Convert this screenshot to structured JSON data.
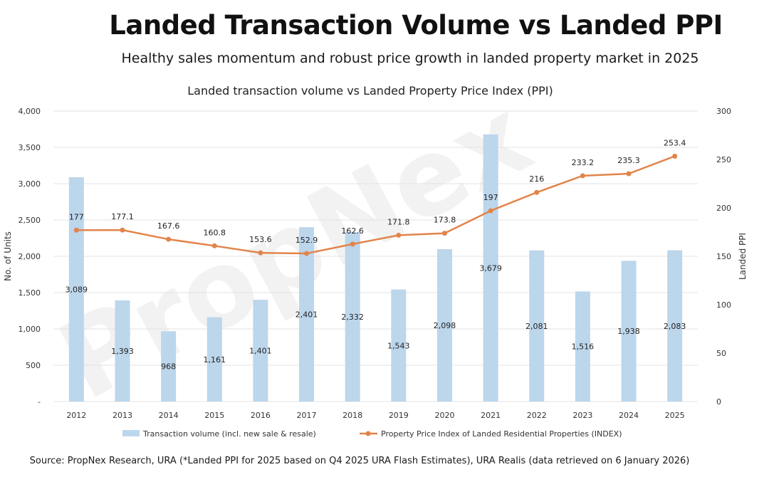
{
  "header": {
    "title": "Landed Transaction Volume vs Landed PPI",
    "subtitle": "Healthy sales momentum and robust price growth in landed property market in 2025"
  },
  "footer": {
    "source": "Source: PropNex Research, URA (*Landed PPI for 2025 based on Q4 2025 URA Flash Estimates), URA Realis (data retrieved on 6 January 2026)"
  },
  "watermark": "PropNex",
  "chart_data": {
    "type": "bar+line",
    "title": "Landed transaction volume vs Landed Property Price Index (PPI)",
    "categories": [
      "2012",
      "2013",
      "2014",
      "2015",
      "2016",
      "2017",
      "2018",
      "2019",
      "2020",
      "2021",
      "2022",
      "2023",
      "2024",
      "2025"
    ],
    "series": [
      {
        "name": "Transaction volume (incl. new sale & resale)",
        "type": "bar",
        "axis": "left",
        "color": "#bcd6ec",
        "values": [
          3089,
          1393,
          968,
          1161,
          1401,
          2401,
          2332,
          1543,
          2098,
          3679,
          2081,
          1516,
          1938,
          2083
        ],
        "labels": [
          "3,089",
          "1,393",
          "968",
          "1,161",
          "1,401",
          "2,401",
          "2,332",
          "1,543",
          "2,098",
          "3,679",
          "2,081",
          "1,516",
          "1,938",
          "2,083"
        ]
      },
      {
        "name": "Property Price Index of Landed Residential Properties (INDEX)",
        "type": "line",
        "axis": "right",
        "color": "#e2844a",
        "values": [
          177,
          177.1,
          167.6,
          160.8,
          153.6,
          152.9,
          162.6,
          171.8,
          173.8,
          197,
          216,
          233.2,
          235.3,
          253.4
        ],
        "labels": [
          "177",
          "177.1",
          "167.6",
          "160.8",
          "153.6",
          "152.9",
          "162.6",
          "171.8",
          "173.8",
          "197",
          "216",
          "233.2",
          "235.3",
          "253.4"
        ]
      }
    ],
    "y_left": {
      "label": "No. of Units",
      "range": [
        0,
        4000
      ],
      "ticks": [
        0,
        500,
        1000,
        1500,
        2000,
        2500,
        3000,
        3500,
        4000
      ],
      "tick_labels": [
        "-",
        "500",
        "1,000",
        "1,500",
        "2,000",
        "2,500",
        "3,000",
        "3,500",
        "4,000"
      ]
    },
    "y_right": {
      "label": "Landed PPI",
      "range": [
        0,
        300
      ],
      "ticks": [
        0,
        50,
        100,
        150,
        200,
        250,
        300
      ],
      "tick_labels": [
        "0",
        "50",
        "100",
        "150",
        "200",
        "250",
        "300"
      ]
    },
    "grid": true,
    "legend": "bottom"
  }
}
